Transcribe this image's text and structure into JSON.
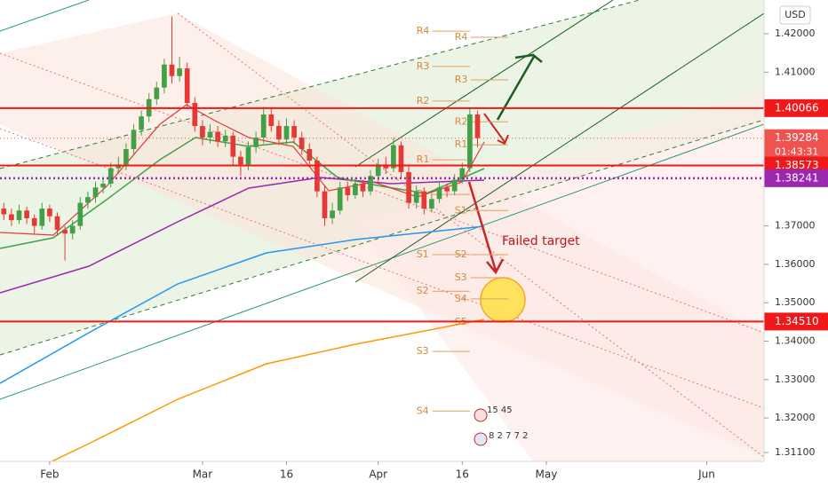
{
  "chart_data": {
    "type": "candlestick",
    "currency": "USD",
    "up_color": "#43a047",
    "down_color": "#e53935",
    "xlim": [
      -0.5,
      99.5
    ],
    "xticks": [
      {
        "value": 6,
        "label": "Feb"
      },
      {
        "value": 26,
        "label": "Mar"
      },
      {
        "value": 37,
        "label": "16"
      },
      {
        "value": 49,
        "label": "Apr"
      },
      {
        "value": 60,
        "label": "16"
      },
      {
        "value": 71,
        "label": "May"
      },
      {
        "value": 92,
        "label": "Jun"
      }
    ],
    "ylim": [
      1.3087,
      1.4288
    ],
    "yticks": [
      {
        "value": 1.42,
        "label": "1.42000"
      },
      {
        "value": 1.41,
        "label": "1.41000"
      },
      {
        "value": 1.37,
        "label": "1.37000"
      },
      {
        "value": 1.36,
        "label": "1.36000"
      },
      {
        "value": 1.35,
        "label": "1.35000"
      },
      {
        "value": 1.34,
        "label": "1.34000"
      },
      {
        "value": 1.33,
        "label": "1.33000"
      },
      {
        "value": 1.32,
        "label": "1.32000"
      },
      {
        "value": 1.311,
        "label": "1.31100"
      }
    ],
    "candles": [
      [
        1.3745,
        1.376,
        1.3715,
        1.373
      ],
      [
        1.373,
        1.3745,
        1.37,
        1.3715
      ],
      [
        1.3715,
        1.3755,
        1.3705,
        1.374
      ],
      [
        1.374,
        1.375,
        1.3705,
        1.372
      ],
      [
        1.372,
        1.373,
        1.368,
        1.37
      ],
      [
        1.37,
        1.376,
        1.369,
        1.3745
      ],
      [
        1.3745,
        1.3755,
        1.371,
        1.3725
      ],
      [
        1.3725,
        1.3735,
        1.3675,
        1.369
      ],
      [
        1.369,
        1.37,
        1.361,
        1.368
      ],
      [
        1.368,
        1.3715,
        1.3665,
        1.37
      ],
      [
        1.37,
        1.3775,
        1.369,
        1.376
      ],
      [
        1.376,
        1.379,
        1.3745,
        1.3775
      ],
      [
        1.3775,
        1.3815,
        1.376,
        1.38
      ],
      [
        1.38,
        1.3825,
        1.3785,
        1.381
      ],
      [
        1.381,
        1.3865,
        1.38,
        1.385
      ],
      [
        1.385,
        1.388,
        1.3835,
        1.386
      ],
      [
        1.386,
        1.3915,
        1.3845,
        1.39
      ],
      [
        1.39,
        1.3965,
        1.3885,
        1.395
      ],
      [
        1.395,
        1.4,
        1.3935,
        1.3985
      ],
      [
        1.3985,
        1.4045,
        1.397,
        1.403
      ],
      [
        1.403,
        1.4075,
        1.4015,
        1.406
      ],
      [
        1.406,
        1.4135,
        1.4045,
        1.412
      ],
      [
        1.412,
        1.4245,
        1.407,
        1.409
      ],
      [
        1.409,
        1.414,
        1.4075,
        1.411
      ],
      [
        1.411,
        1.4125,
        1.4005,
        1.402
      ],
      [
        1.402,
        1.4035,
        1.3945,
        1.396
      ],
      [
        1.396,
        1.3975,
        1.391,
        1.393
      ],
      [
        1.393,
        1.3965,
        1.3915,
        1.3945
      ],
      [
        1.3945,
        1.396,
        1.3905,
        1.392
      ],
      [
        1.392,
        1.395,
        1.3905,
        1.3935
      ],
      [
        1.3935,
        1.3945,
        1.3855,
        1.388
      ],
      [
        1.388,
        1.3895,
        1.383,
        1.386
      ],
      [
        1.386,
        1.392,
        1.3845,
        1.3905
      ],
      [
        1.3905,
        1.3945,
        1.389,
        1.393
      ],
      [
        1.393,
        1.401,
        1.3915,
        1.399
      ],
      [
        1.399,
        1.4005,
        1.3945,
        1.396
      ],
      [
        1.396,
        1.3975,
        1.391,
        1.3925
      ],
      [
        1.3925,
        1.398,
        1.391,
        1.396
      ],
      [
        1.396,
        1.3975,
        1.3915,
        1.393
      ],
      [
        1.393,
        1.3945,
        1.3885,
        1.39
      ],
      [
        1.39,
        1.3915,
        1.3855,
        1.387
      ],
      [
        1.387,
        1.388,
        1.3775,
        1.379
      ],
      [
        1.379,
        1.3805,
        1.37,
        1.372
      ],
      [
        1.372,
        1.376,
        1.3705,
        1.374
      ],
      [
        1.374,
        1.3815,
        1.373,
        1.38
      ],
      [
        1.38,
        1.3815,
        1.3765,
        1.378
      ],
      [
        1.378,
        1.3825,
        1.377,
        1.381
      ],
      [
        1.381,
        1.382,
        1.3775,
        1.379
      ],
      [
        1.379,
        1.3845,
        1.378,
        1.383
      ],
      [
        1.383,
        1.3875,
        1.3815,
        1.386
      ],
      [
        1.386,
        1.388,
        1.3835,
        1.385
      ],
      [
        1.385,
        1.393,
        1.384,
        1.391
      ],
      [
        1.391,
        1.392,
        1.3825,
        1.384
      ],
      [
        1.384,
        1.3855,
        1.3745,
        1.376
      ],
      [
        1.376,
        1.3805,
        1.3745,
        1.379
      ],
      [
        1.379,
        1.38,
        1.373,
        1.3745
      ],
      [
        1.3745,
        1.3785,
        1.3735,
        1.377
      ],
      [
        1.377,
        1.3815,
        1.376,
        1.38
      ],
      [
        1.38,
        1.381,
        1.3775,
        1.379
      ],
      [
        1.379,
        1.3835,
        1.378,
        1.382
      ],
      [
        1.382,
        1.3865,
        1.381,
        1.385
      ],
      [
        1.385,
        1.4005,
        1.384,
        1.399
      ],
      [
        1.399,
        1.4,
        1.3905,
        1.39284
      ]
    ],
    "hlines": [
      {
        "value": 1.40066,
        "label": "1.40066",
        "color": "#f01818",
        "style": "solid"
      },
      {
        "value": 1.38573,
        "label": "1.38573",
        "color": "#f01818",
        "style": "solid"
      },
      {
        "value": 1.3451,
        "label": "1.34510",
        "color": "#f01818",
        "style": "solid"
      },
      {
        "value": 1.38241,
        "label": "1.38241",
        "color": "#9c27b0",
        "style": "dotted"
      }
    ],
    "last_price": {
      "value": 1.39284,
      "label": "1.39284",
      "countdown": "01:43:31",
      "color": "#ef5350"
    },
    "pivot_sets": [
      {
        "x": [
          54,
          61
        ],
        "levels": [
          {
            "label": "R4",
            "value": 1.4207
          },
          {
            "label": "R3",
            "value": 1.4115
          },
          {
            "label": "R2",
            "value": 1.4025
          },
          {
            "label": "R1",
            "value": 1.3872
          },
          {
            "label": "P",
            "value": 1.3782
          },
          {
            "label": "S1",
            "value": 1.3625
          },
          {
            "label": "S2",
            "value": 1.353
          },
          {
            "label": "S3",
            "value": 1.3373
          },
          {
            "label": "S4",
            "value": 1.3218
          }
        ]
      },
      {
        "x": [
          59,
          66
        ],
        "levels": [
          {
            "label": "R4",
            "value": 1.4191
          },
          {
            "label": "R3",
            "value": 1.408
          },
          {
            "label": "R2",
            "value": 1.3971
          },
          {
            "label": "R1",
            "value": 1.3911
          },
          {
            "label": "S1",
            "value": 1.374
          },
          {
            "label": "S2",
            "value": 1.3625
          },
          {
            "label": "S3",
            "value": 1.3565
          },
          {
            "label": "S4",
            "value": 1.351
          },
          {
            "label": "S5",
            "value": 1.345
          }
        ]
      }
    ],
    "annotation": "Failed target",
    "events": [
      "15 45",
      "8 2 7 7 2"
    ]
  }
}
